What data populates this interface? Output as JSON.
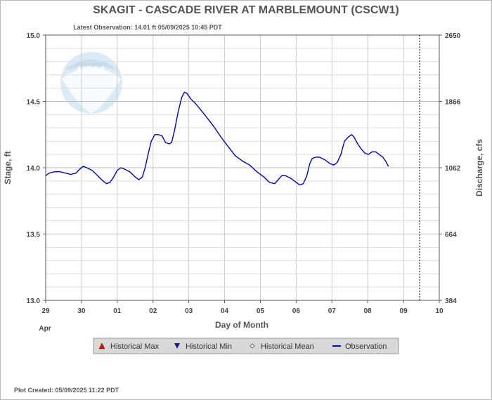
{
  "chart_data": {
    "type": "line",
    "title": "SKAGIT - CASCADE RIVER AT MARBLEMOUNT  (CSCW1)",
    "subtitle": "Latest Observation: 14.01 ft 05/09/2025 10:45 PDT",
    "footer": "Plot Created: 05/09/2025 11:22 PDT",
    "xlabel": "Day of Month",
    "x_month_label": "Apr",
    "ylabel_left": "Stage, ft",
    "ylabel_right": "Discharge, cfs",
    "xlim": [
      0,
      11
    ],
    "ylim": [
      13.0,
      15.0
    ],
    "x_ticks": [
      "29",
      "30",
      "01",
      "02",
      "03",
      "04",
      "05",
      "06",
      "07",
      "08",
      "09",
      "10"
    ],
    "y_ticks_left": [
      "13.0",
      "13.5",
      "14.0",
      "14.5",
      "15.0"
    ],
    "y_ticks_right": [
      {
        "label": "384",
        "stage": 13.0
      },
      {
        "label": "664",
        "stage": 13.5
      },
      {
        "label": "1062",
        "stage": 14.0
      },
      {
        "label": "1866",
        "stage": 14.5
      },
      {
        "label": "2650",
        "stage": 15.0
      }
    ],
    "grid": true,
    "latest_observation_x": 10.45,
    "legend": [
      {
        "name": "Historical Max",
        "symbol": "triangle-up",
        "color": "#d01010"
      },
      {
        "name": "Historical Min",
        "symbol": "triangle-down",
        "color": "#1a1a99"
      },
      {
        "name": "Historical Mean",
        "symbol": "diamond",
        "color": "#666666"
      },
      {
        "name": "Observation",
        "symbol": "line",
        "color": "#0000cc"
      }
    ],
    "series": [
      {
        "name": "Observation",
        "color": "#0000cc",
        "points": [
          [
            0.0,
            13.94
          ],
          [
            0.1,
            13.96
          ],
          [
            0.25,
            13.97
          ],
          [
            0.4,
            13.97
          ],
          [
            0.55,
            13.96
          ],
          [
            0.7,
            13.95
          ],
          [
            0.85,
            13.96
          ],
          [
            0.95,
            13.99
          ],
          [
            1.05,
            14.01
          ],
          [
            1.15,
            14.0
          ],
          [
            1.3,
            13.98
          ],
          [
            1.45,
            13.94
          ],
          [
            1.6,
            13.9
          ],
          [
            1.7,
            13.88
          ],
          [
            1.8,
            13.89
          ],
          [
            1.9,
            13.93
          ],
          [
            2.0,
            13.98
          ],
          [
            2.1,
            14.0
          ],
          [
            2.2,
            13.99
          ],
          [
            2.35,
            13.97
          ],
          [
            2.5,
            13.93
          ],
          [
            2.6,
            13.91
          ],
          [
            2.7,
            13.93
          ],
          [
            2.78,
            14.0
          ],
          [
            2.86,
            14.1
          ],
          [
            2.95,
            14.2
          ],
          [
            3.05,
            14.25
          ],
          [
            3.15,
            14.25
          ],
          [
            3.25,
            14.24
          ],
          [
            3.35,
            14.19
          ],
          [
            3.45,
            14.18
          ],
          [
            3.52,
            14.19
          ],
          [
            3.6,
            14.28
          ],
          [
            3.7,
            14.42
          ],
          [
            3.8,
            14.53
          ],
          [
            3.88,
            14.57
          ],
          [
            3.95,
            14.56
          ],
          [
            4.05,
            14.52
          ],
          [
            4.2,
            14.48
          ],
          [
            4.35,
            14.43
          ],
          [
            4.5,
            14.38
          ],
          [
            4.7,
            14.31
          ],
          [
            4.9,
            14.23
          ],
          [
            5.1,
            14.16
          ],
          [
            5.3,
            14.09
          ],
          [
            5.5,
            14.05
          ],
          [
            5.7,
            14.02
          ],
          [
            5.9,
            13.97
          ],
          [
            6.1,
            13.93
          ],
          [
            6.25,
            13.89
          ],
          [
            6.4,
            13.88
          ],
          [
            6.5,
            13.91
          ],
          [
            6.6,
            13.94
          ],
          [
            6.7,
            13.94
          ],
          [
            6.85,
            13.92
          ],
          [
            7.0,
            13.89
          ],
          [
            7.1,
            13.87
          ],
          [
            7.2,
            13.88
          ],
          [
            7.3,
            13.94
          ],
          [
            7.38,
            14.03
          ],
          [
            7.45,
            14.07
          ],
          [
            7.55,
            14.08
          ],
          [
            7.65,
            14.08
          ],
          [
            7.8,
            14.06
          ],
          [
            7.95,
            14.03
          ],
          [
            8.05,
            14.02
          ],
          [
            8.15,
            14.04
          ],
          [
            8.25,
            14.1
          ],
          [
            8.35,
            14.2
          ],
          [
            8.45,
            14.23
          ],
          [
            8.55,
            14.25
          ],
          [
            8.62,
            14.23
          ],
          [
            8.72,
            14.18
          ],
          [
            8.82,
            14.14
          ],
          [
            8.92,
            14.11
          ],
          [
            9.02,
            14.1
          ],
          [
            9.12,
            14.12
          ],
          [
            9.22,
            14.12
          ],
          [
            9.32,
            14.1
          ],
          [
            9.42,
            14.08
          ],
          [
            9.5,
            14.05
          ],
          [
            9.58,
            14.01
          ]
        ]
      }
    ]
  }
}
